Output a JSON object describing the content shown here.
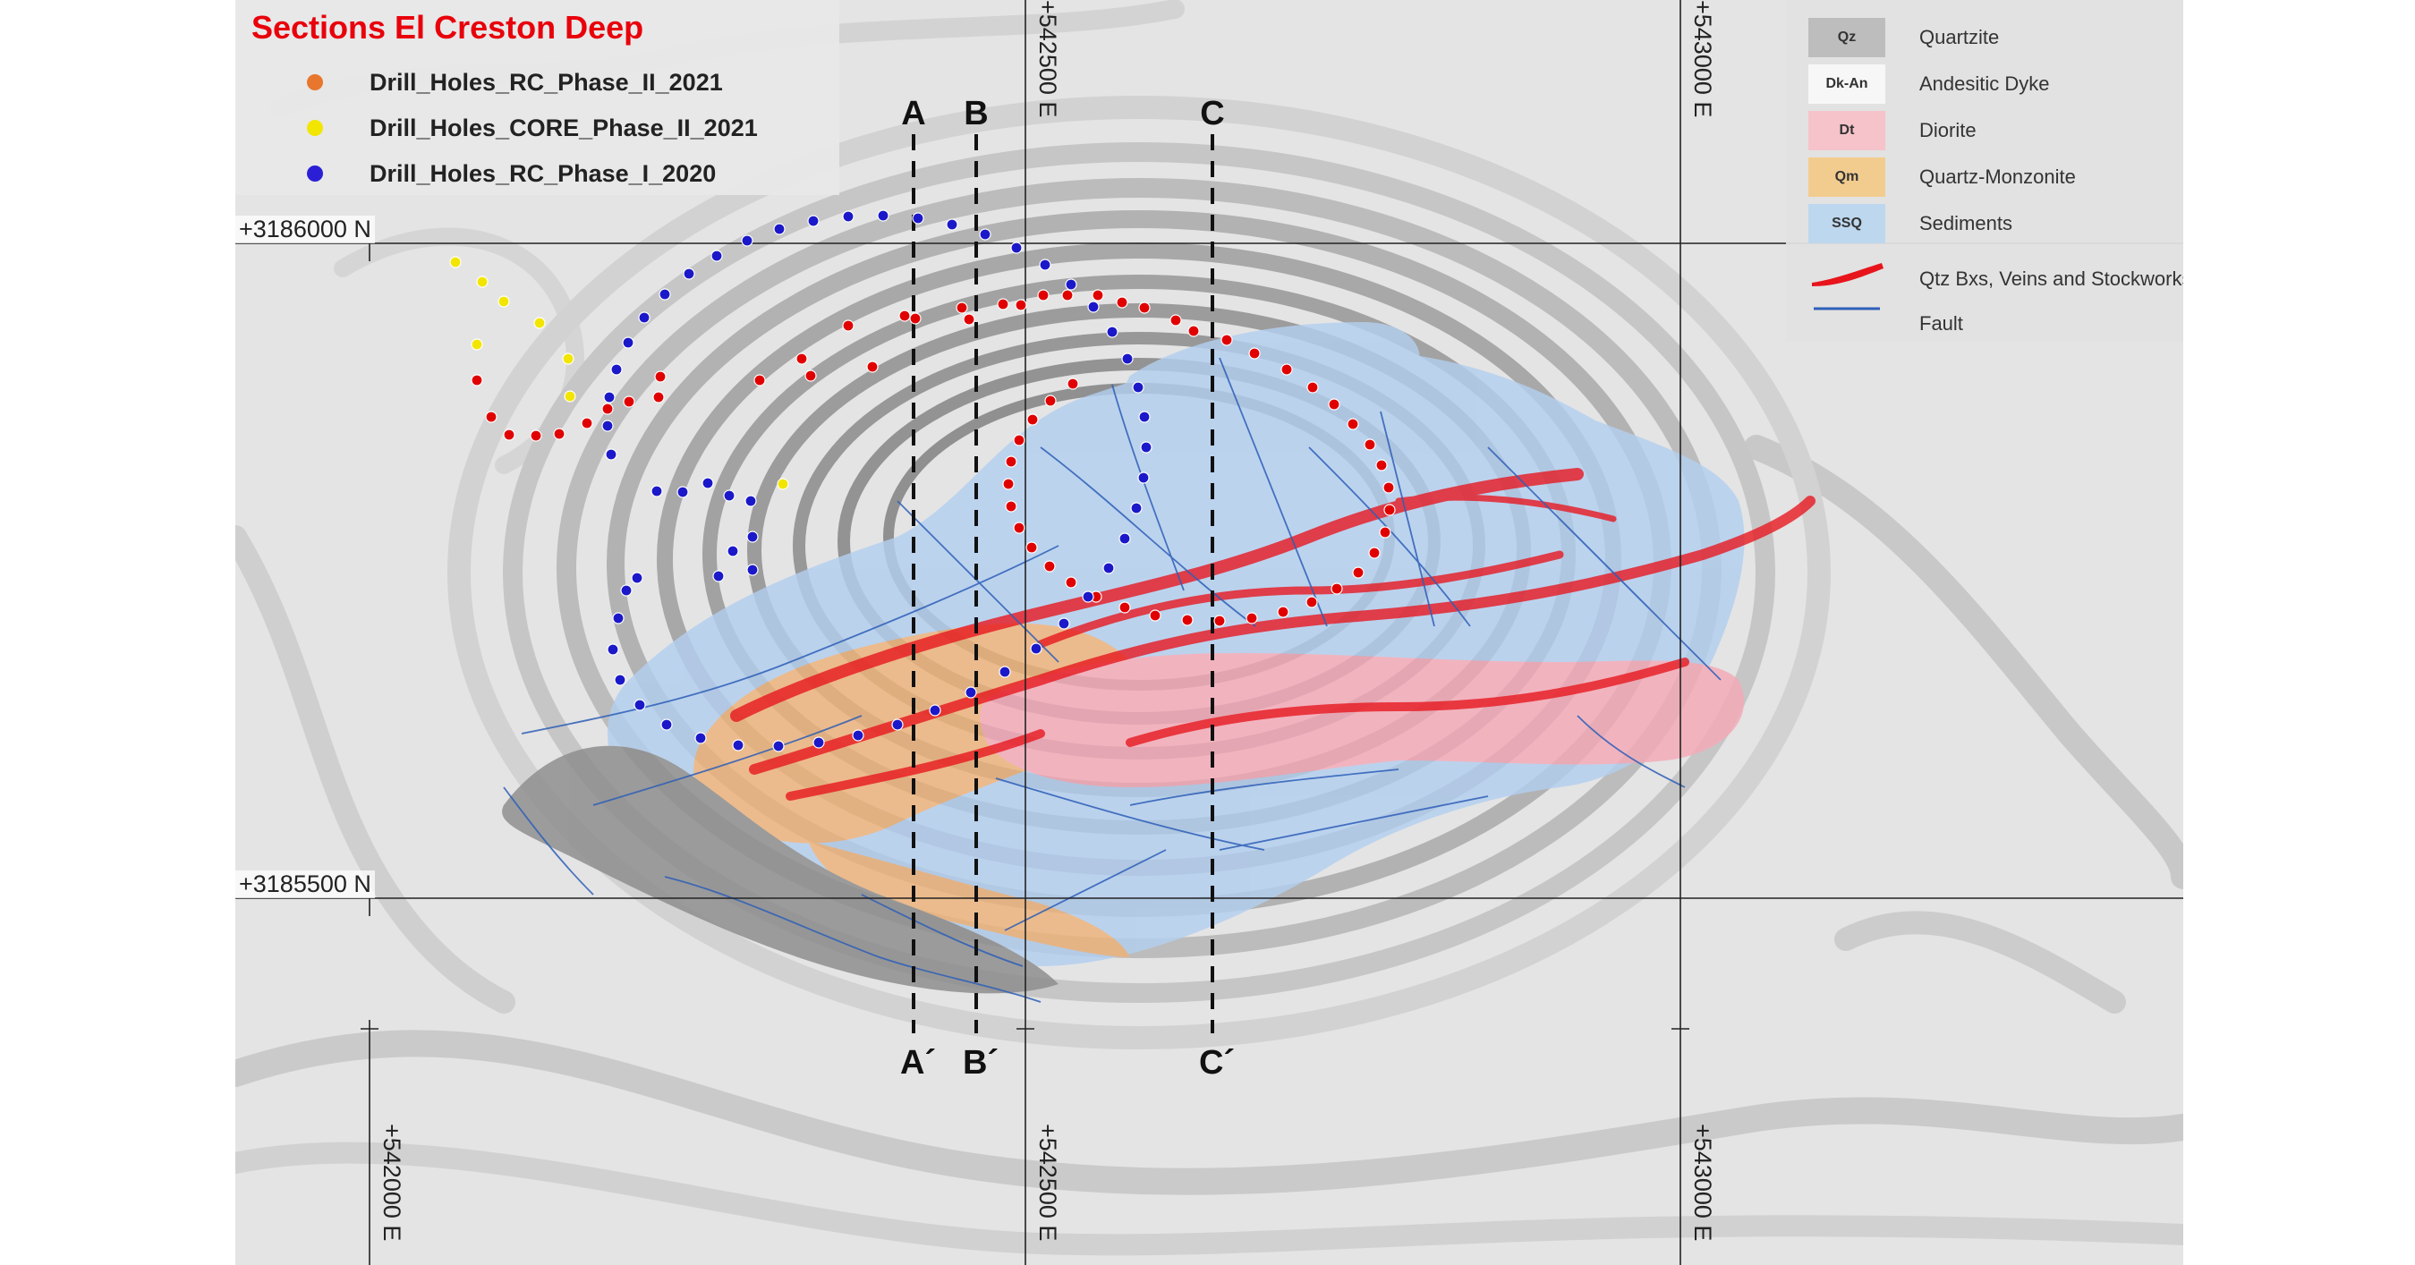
{
  "title": "Sections El Creston Deep",
  "drill_legend": [
    {
      "label": "Drill_Holes_RC_Phase_II_2021",
      "color": "#e8762d"
    },
    {
      "label": "Drill_Holes_CORE_Phase_II_2021",
      "color": "#f2e600"
    },
    {
      "label": "Drill_Holes_RC_Phase_I_2020",
      "color": "#2b1fd6"
    }
  ],
  "geology_legend": [
    {
      "code": "Qz",
      "label": "Quartzite",
      "color": "#bdbdbd"
    },
    {
      "code": "Dk-An",
      "label": "Andesitic Dyke",
      "color": "#f7f7f7"
    },
    {
      "code": "Dt",
      "label": "Diorite",
      "color": "#f6c3cb"
    },
    {
      "code": "Qm",
      "label": "Quartz-Monzonite",
      "color": "#f2cc8f"
    },
    {
      "code": "SSQ",
      "label": "Sediments",
      "color": "#bdd7ee"
    },
    {
      "code": "",
      "label": "Qtz Bxs, Veins and Stockworks",
      "color": "#e8141c"
    },
    {
      "code": "",
      "label": "Fault",
      "color": "#2e5fb7"
    }
  ],
  "grid": {
    "northings": [
      "+3186000 N",
      "+3185500 N"
    ],
    "eastings_top": [
      "+542500 E",
      "+543000 E"
    ],
    "eastings_bottom": [
      "+542000 E",
      "+542500 E",
      "+543000 E"
    ]
  },
  "sections": [
    {
      "start": "A",
      "end": "A´"
    },
    {
      "start": "B",
      "end": "B´"
    },
    {
      "start": "C",
      "end": "C´"
    }
  ],
  "colors": {
    "rc_2021": "#e00000",
    "core_2021": "#f2e600",
    "rc_2020": "#1b18c9",
    "sediments": "#a9c8ee",
    "monzonite": "#eeb37a",
    "diorite": "#f5aab8",
    "veins": "#e8141c",
    "fault": "#2e5fb7"
  }
}
